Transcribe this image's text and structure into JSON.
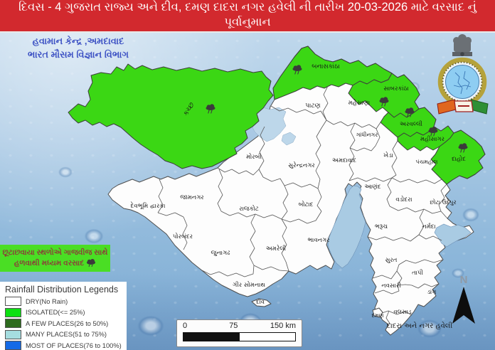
{
  "banner": {
    "line1": "દિવસ - 4 ગુજરાત રાજ્ય અને દીવ, દમણ દાદરા નગર હવેલી ની તારીખ 20-03-2026 માટે વરસાદ નું",
    "line2": "પૂર્વાનુમાન"
  },
  "header": {
    "office_line1": "હવામાન કેન્દ્ર ,અમદાવાદ",
    "office_line2": "ભારત મૌસમ વિજ્ઞાન વિભાગ"
  },
  "annotation": {
    "line1": "છૂટાછવાયા સ્થળોએ ગાજવીજ સાથે",
    "line2": "હળવાથી મધ્યમ વરસાદ"
  },
  "legend": {
    "title": "Rainfall Distribution Legends",
    "items": [
      {
        "label": "DRY(No Rain)",
        "color": "#ffffff"
      },
      {
        "label": "ISOLATED(<= 25%)",
        "color": "#0ce012"
      },
      {
        "label": "A FEW PLACES(26 to 50%)",
        "color": "#2e6b1e"
      },
      {
        "label": "MANY PLACES(51 to 75%)",
        "color": "#a5dde0"
      },
      {
        "label": "MOST OF PLACES(76 to 100%)",
        "color": "#146ae6"
      }
    ]
  },
  "scalebar": {
    "start": "0",
    "mid": "75",
    "end": "150 km"
  },
  "compass": {
    "label": "N"
  },
  "map": {
    "districts": [
      {
        "name": "કચ્છ",
        "rain": "isolated"
      },
      {
        "name": "બનાસકાંઠા",
        "rain": "isolated"
      },
      {
        "name": "પાટણ",
        "rain": "dry"
      },
      {
        "name": "સાબરકાંઠા",
        "rain": "isolated"
      },
      {
        "name": "મહેસાણા",
        "rain": "dry"
      },
      {
        "name": "ગાંધીનગર",
        "rain": "dry"
      },
      {
        "name": "અરવલ્લી",
        "rain": "isolated"
      },
      {
        "name": "મહીસાગર",
        "rain": "isolated"
      },
      {
        "name": "દાહોદ",
        "rain": "isolated"
      },
      {
        "name": "પંચમહાલ",
        "rain": "dry"
      },
      {
        "name": "ખેડા",
        "rain": "dry"
      },
      {
        "name": "અમદાવાદ",
        "rain": "dry"
      },
      {
        "name": "સુરેન્દ્રનગર",
        "rain": "dry"
      },
      {
        "name": "મોરબી",
        "rain": "dry"
      },
      {
        "name": "આણંદ",
        "rain": "dry"
      },
      {
        "name": "વડોદરા",
        "rain": "dry"
      },
      {
        "name": "છોટા ઉદેપુર",
        "rain": "dry"
      },
      {
        "name": "જામનગર",
        "rain": "dry"
      },
      {
        "name": "દેવભૂમિ દ્વારકા",
        "rain": "dry"
      },
      {
        "name": "રાજકોટ",
        "rain": "dry"
      },
      {
        "name": "બોટાદ",
        "rain": "dry"
      },
      {
        "name": "પોરબંદર",
        "rain": "dry"
      },
      {
        "name": "જુનાગઢ",
        "rain": "dry"
      },
      {
        "name": "અમરેલી",
        "rain": "dry"
      },
      {
        "name": "ભાવનગર",
        "rain": "dry"
      },
      {
        "name": "ગીર સોમનાથ",
        "rain": "dry"
      },
      {
        "name": "દીવ",
        "rain": "dry"
      },
      {
        "name": "ભરૂચ",
        "rain": "dry"
      },
      {
        "name": "નર્મદા",
        "rain": "dry"
      },
      {
        "name": "સુરત",
        "rain": "dry"
      },
      {
        "name": "તાપી",
        "rain": "dry"
      },
      {
        "name": "નવસારી",
        "rain": "dry"
      },
      {
        "name": "ડાંગ",
        "rain": "dry"
      },
      {
        "name": "વલસાડ",
        "rain": "dry"
      },
      {
        "name": "દમણ",
        "rain": "dry"
      },
      {
        "name": "દાદરા અને નગર હવેલી",
        "rain": "dry"
      }
    ]
  },
  "colors": {
    "banner_red": "#d2292e",
    "header_blue": "#3d52c4",
    "district_green": "#3bd714",
    "annotation_green": "#4ade24",
    "annotation_text": "#8a4038",
    "water": "#a9cbe3"
  }
}
